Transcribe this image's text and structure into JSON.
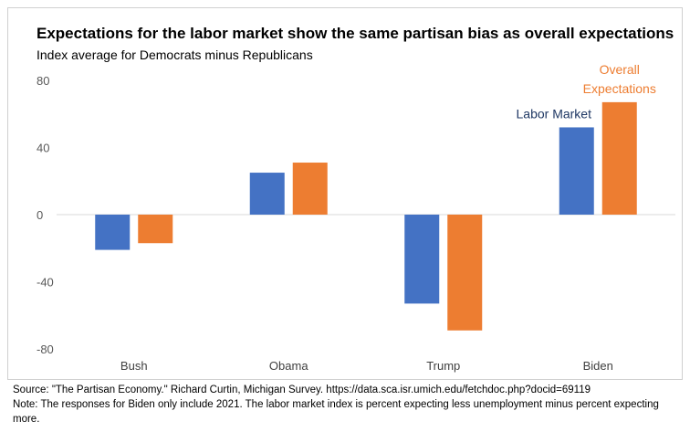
{
  "header": {
    "title": "Expectations for the labor market show the same partisan bias as overall expectations",
    "subtitle": "Index average for Democrats minus Republicans"
  },
  "footer": {
    "source": "Source: \"The Partisan Economy.\" Richard Curtin, Michigan Survey. https://data.sca.isr.umich.edu/fetchdoc.php?docid=69119",
    "note": "Note: The responses for Biden only include 2021. The labor market index is percent expecting less unemployment minus percent expecting more."
  },
  "chart_data": {
    "type": "bar",
    "title": "Expectations for the labor market show the same partisan bias as overall expectations",
    "subtitle": "Index average for Democrats minus Republicans",
    "categories": [
      "Bush",
      "Obama",
      "Trump",
      "Biden"
    ],
    "series": [
      {
        "name": "Labor Market",
        "label_lines": [
          "Labor Market"
        ],
        "color": "#4472c4",
        "values": [
          -21,
          25,
          -53,
          52
        ]
      },
      {
        "name": "Overall Expectations",
        "label_lines": [
          "Overall",
          "Expectations"
        ],
        "color": "#ed7d31",
        "values": [
          -17,
          31,
          -69,
          67
        ]
      }
    ],
    "yticks": [
      80,
      40,
      0,
      -40,
      -80
    ],
    "ylim": [
      -80,
      80
    ],
    "grid": false,
    "legend": "direct labels above Biden bars",
    "label_colors": {
      "Labor Market": "#1f3864",
      "Overall Expectations": "#ed7d31"
    }
  }
}
